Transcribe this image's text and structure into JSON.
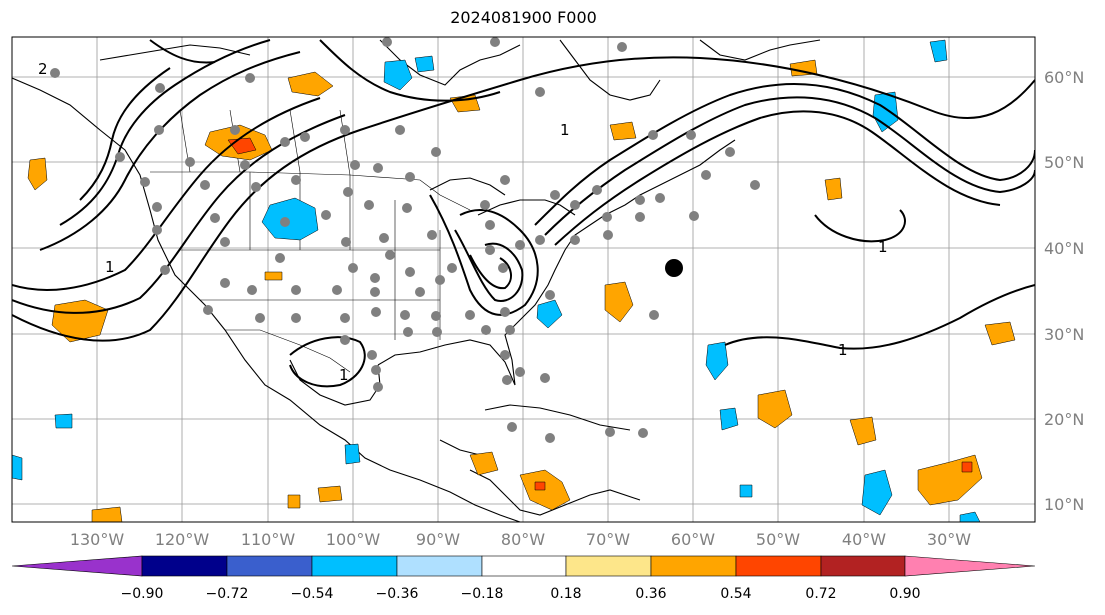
{
  "title": "2024081900 F000",
  "lon_labels": [
    "130°W",
    "120°W",
    "110°W",
    "100°W",
    "90°W",
    "80°W",
    "70°W",
    "60°W",
    "50°W",
    "40°W",
    "30°W"
  ],
  "lat_labels": [
    "60°N",
    "50°N",
    "40°N",
    "30°N",
    "20°N",
    "10°N"
  ],
  "contour_labels": [
    "2",
    "1",
    "1",
    "1",
    "1",
    "1"
  ],
  "colorbar": {
    "ticks": [
      "−0.90",
      "−0.72",
      "−0.54",
      "−0.36",
      "−0.18",
      "0.18",
      "0.36",
      "0.54",
      "0.72",
      "0.90"
    ],
    "colors": [
      "#9932cc",
      "#00008b",
      "#3a5fcd",
      "#00bfff",
      "#afe0ff",
      "#ffffff",
      "#fde68a",
      "#ffa500",
      "#ff4500",
      "#b22222",
      "#ff80b0"
    ]
  },
  "colors": {
    "grid": "#999999",
    "contour": "#000000",
    "station": "#808080",
    "marker": "#000000"
  }
}
